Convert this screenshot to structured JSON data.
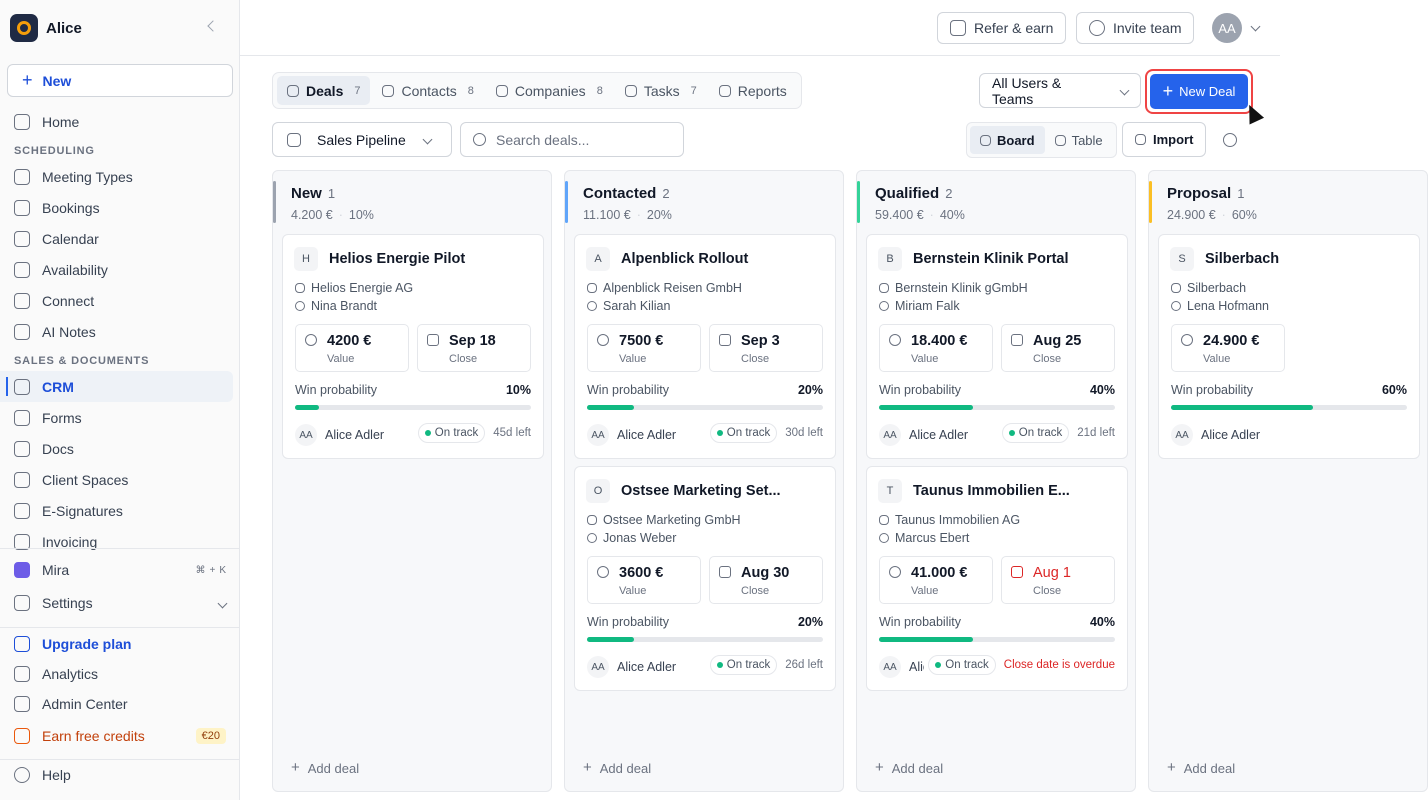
{
  "sidebar": {
    "workspace": "Alice",
    "new_button": "New",
    "active_item": "CRM",
    "top_items": [
      "Home"
    ],
    "sections": [
      {
        "title": "SCHEDULING",
        "items": [
          "Meeting Types",
          "Bookings",
          "Calendar",
          "Availability",
          "Connect",
          "AI Notes"
        ]
      },
      {
        "title": "SALES & DOCUMENTS",
        "items": [
          "CRM",
          "Forms",
          "Docs",
          "Client Spaces",
          "E-Signatures",
          "Invoicing"
        ]
      }
    ],
    "footer": {
      "mira": "Mira",
      "shortcut": [
        "⌘",
        "+",
        "K"
      ],
      "settings": "Settings",
      "upgrade": "Upgrade plan",
      "analytics": "Analytics",
      "admin": "Admin Center",
      "credits": "Earn free credits",
      "credits_badge": "€20",
      "help": "Help"
    }
  },
  "header": {
    "refer": "Refer & earn",
    "invite": "Invite team",
    "avatar": "AA"
  },
  "tabs": [
    {
      "label": "Deals",
      "count": 7
    },
    {
      "label": "Contacts",
      "count": 8
    },
    {
      "label": "Companies",
      "count": 8
    },
    {
      "label": "Tasks",
      "count": 7
    },
    {
      "label": "Reports"
    }
  ],
  "toolbar": {
    "filter": "All Users & Teams",
    "new_deal": "New Deal",
    "pipeline": "Sales Pipeline",
    "search_placeholder": "Search deals...",
    "views": [
      "Board",
      "Table"
    ],
    "import": "Import"
  },
  "labels": {
    "value": "Value",
    "close": "Close",
    "win": "Win probability",
    "add": "Add deal"
  },
  "columns": [
    {
      "name": "New",
      "count": 1,
      "total": "4.200 €",
      "probability": "10%",
      "color": "#9ca3af",
      "deals": [
        {
          "initial": "H",
          "title": "Helios Energie Pilot",
          "company": "Helios Energie AG",
          "contact": "Nina Brandt",
          "value": "4200 €",
          "close": "Sep 18",
          "win": "10%",
          "owner_initials": "AA",
          "owner": "Alice Adler",
          "status": "On track",
          "due": "45d left"
        }
      ]
    },
    {
      "name": "Contacted",
      "count": 2,
      "total": "11.100 €",
      "probability": "20%",
      "color": "#60a5fa",
      "deals": [
        {
          "initial": "A",
          "title": "Alpenblick Rollout",
          "company": "Alpenblick Reisen GmbH",
          "contact": "Sarah Kilian",
          "value": "7500 €",
          "close": "Sep 3",
          "win": "20%",
          "owner_initials": "AA",
          "owner": "Alice Adler",
          "status": "On track",
          "due": "30d left"
        },
        {
          "initial": "O",
          "title": "Ostsee Marketing Set...",
          "company": "Ostsee Marketing GmbH",
          "contact": "Jonas Weber",
          "value": "3600 €",
          "close": "Aug 30",
          "win": "20%",
          "owner_initials": "AA",
          "owner": "Alice Adler",
          "status": "On track",
          "due": "26d left"
        }
      ]
    },
    {
      "name": "Qualified",
      "count": 2,
      "total": "59.400 €",
      "probability": "40%",
      "color": "#34d399",
      "deals": [
        {
          "initial": "B",
          "title": "Bernstein Klinik Portal",
          "company": "Bernstein Klinik gGmbH",
          "contact": "Miriam Falk",
          "value": "18.400 €",
          "close": "Aug 25",
          "win": "40%",
          "owner_initials": "AA",
          "owner": "Alice Adler",
          "status": "On track",
          "due": "21d left"
        },
        {
          "initial": "T",
          "title": "Taunus Immobilien E...",
          "company": "Taunus Immobilien AG",
          "contact": "Marcus Ebert",
          "value": "41.000 €",
          "close": "Aug 1",
          "overdue": true,
          "win": "40%",
          "owner_initials": "AA",
          "owner": "Alice Adler",
          "status": "On track",
          "due": "Close date is overdue"
        }
      ]
    },
    {
      "name": "Proposal",
      "count": 1,
      "total": "24.900 €",
      "probability": "60%",
      "color": "#fbbf24",
      "deals": [
        {
          "initial": "S",
          "title": "Silberbach",
          "company": "Silberbach",
          "contact": "Lena Hofmann",
          "value": "24.900 €",
          "win": "60%",
          "owner_initials": "AA",
          "owner": "Alice Adler"
        }
      ]
    }
  ]
}
